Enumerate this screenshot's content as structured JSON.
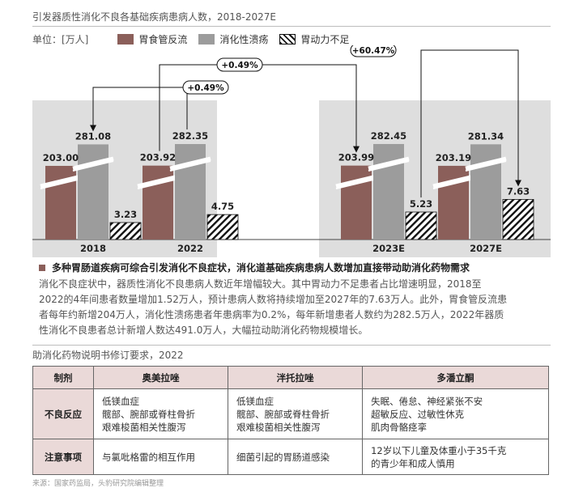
{
  "title": "引发器质性消化不良各基础疾病患病人数，2018-2027E",
  "unit_label": "单位：[万人]",
  "legend": [
    "胃食管反流",
    "消化性溃疡",
    "胃动力不足"
  ],
  "colors": {
    "gerd": "#8b5f5a",
    "ulcer": "#9c9c9c",
    "motility": "#111111",
    "panel": "#dedede"
  },
  "chart_data": {
    "type": "bar",
    "categories": [
      "2018",
      "2022",
      "2023E",
      "2027E"
    ],
    "series": [
      {
        "name": "胃食管反流",
        "values": [
          203.0,
          203.92,
          203.99,
          203.19
        ]
      },
      {
        "name": "消化性溃疡",
        "values": [
          281.08,
          282.35,
          282.45,
          281.34
        ]
      },
      {
        "name": "胃动力不足",
        "values": [
          3.23,
          4.75,
          5.23,
          7.63
        ]
      }
    ],
    "value_labels": [
      [
        "203.00",
        "281.08",
        "3.23"
      ],
      [
        "203.92",
        "282.35",
        "4.75"
      ],
      [
        "203.99",
        "282.45",
        "5.23"
      ],
      [
        "203.19",
        "281.34",
        "7.63"
      ]
    ],
    "annotations": [
      "+0.49%",
      "+0.49%",
      "+60.47%"
    ],
    "axis_break": true
  },
  "heading": "多种胃肠道疾病可综合引发消化不良症状，消化道基础疾病患病人数增加直接带动助消化药物需求",
  "paragraph_lines": [
    "消化不良症状中，器质性消化不良患病人数近年增幅较大。其中胃动力不足患者占比增速明显，2018至",
    "2022的4年间患者数量增加1.52万人，预计患病人数将持续增加至2027年的7.63万人。此外，胃食管反流患",
    "者每年约新增204万人，消化性溃疡患者年患病率为0.2%，每年新增患者人数约为282.5万人，2022年器质",
    "性消化不良患者总计新增人数达491.0万人，大幅拉动助消化药物规模增长。"
  ],
  "table_title": "助消化药物说明书修订要求，2022",
  "table": {
    "headers": [
      "制剂",
      "奥美拉唑",
      "泮托拉唑",
      "多潘立酮"
    ],
    "rows": [
      {
        "label": "不良反应",
        "cells": [
          [
            "低镁血症",
            "髋部、腕部或脊柱骨折",
            "艰难梭菌相关性腹泻"
          ],
          [
            "低镁血症",
            "髋部、腕部或脊柱骨折",
            "艰难梭菌相关性腹泻"
          ],
          [
            "失眠、倦怠、神经紧张不安",
            "超敏反应、过敏性休克",
            "肌肉骨骼痉挛"
          ]
        ]
      },
      {
        "label": "注意事项",
        "cells": [
          [
            "与氯吡格雷的相互作用"
          ],
          [
            "细菌引起的胃肠道感染"
          ],
          [
            "12岁以下儿童及体重小于35千克",
            "的青少年和成人慎用"
          ]
        ]
      }
    ]
  },
  "source": "来源：国家药监局，头豹研究院编辑整理"
}
